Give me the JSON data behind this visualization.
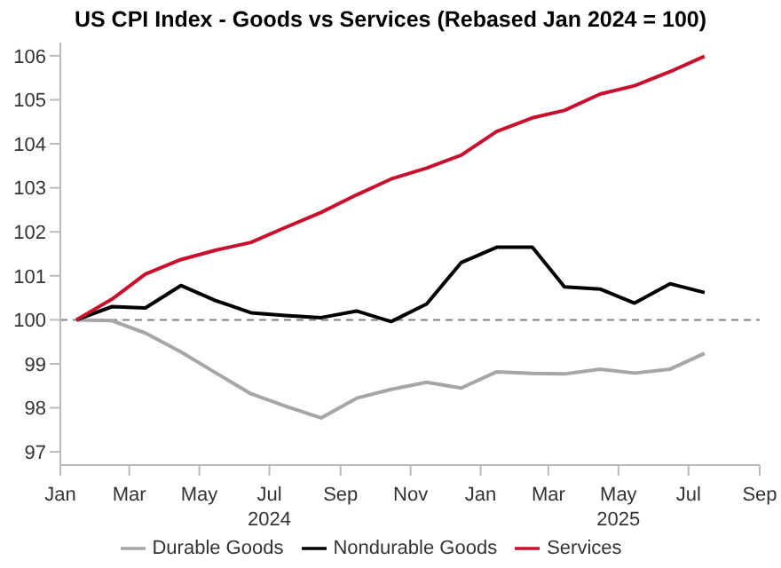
{
  "chart_data": {
    "type": "line",
    "title": "US CPI Index - Goods vs Services (Rebased Jan 2024 = 100)",
    "x": [
      "2024-01-15",
      "2024-02-15",
      "2024-03-15",
      "2024-04-15",
      "2024-05-15",
      "2024-06-15",
      "2024-07-15",
      "2024-08-15",
      "2024-09-15",
      "2024-10-15",
      "2024-11-15",
      "2024-12-15",
      "2025-01-15",
      "2025-02-15",
      "2025-03-15",
      "2025-04-15",
      "2025-05-15",
      "2025-06-15",
      "2025-07-15"
    ],
    "series": [
      {
        "name": "Durable Goods",
        "color": "#a6a6a6",
        "values": [
          100,
          99.98,
          99.7,
          99.27,
          98.8,
          98.32,
          98.04,
          97.77,
          98.22,
          98.42,
          98.58,
          98.45,
          98.82,
          98.78,
          98.77,
          98.88,
          98.79,
          98.88,
          99.24
        ]
      },
      {
        "name": "Nondurable Goods",
        "color": "#000000",
        "values": [
          100,
          100.3,
          100.27,
          100.78,
          100.44,
          100.16,
          100.1,
          100.05,
          100.2,
          99.96,
          100.36,
          101.3,
          101.65,
          101.65,
          100.75,
          100.7,
          100.38,
          100.82,
          100.62
        ]
      },
      {
        "name": "Services",
        "color": "#c8102e",
        "values": [
          100,
          100.47,
          101.04,
          101.37,
          101.58,
          101.76,
          102.1,
          102.44,
          102.84,
          103.2,
          103.45,
          103.74,
          104.28,
          104.59,
          104.76,
          105.13,
          105.32,
          105.64,
          105.99
        ]
      }
    ],
    "xlim": [
      "2024-01-01",
      "2025-09-01"
    ],
    "xticks": [
      {
        "value": "2024-01-01",
        "label": "Jan"
      },
      {
        "value": "2024-03-01",
        "label": "Mar"
      },
      {
        "value": "2024-05-01",
        "label": "May"
      },
      {
        "value": "2024-07-01",
        "label": "Jul\n2024"
      },
      {
        "value": "2024-09-01",
        "label": "Sep"
      },
      {
        "value": "2024-11-01",
        "label": "Nov"
      },
      {
        "value": "2025-01-01",
        "label": "Jan"
      },
      {
        "value": "2025-03-01",
        "label": "Mar"
      },
      {
        "value": "2025-05-01",
        "label": "May\n2025"
      },
      {
        "value": "2025-07-01",
        "label": "Jul"
      },
      {
        "value": "2025-09-01",
        "label": "Sep"
      }
    ],
    "ylim": [
      96.7,
      106.3
    ],
    "yticks": [
      97,
      98,
      99,
      100,
      101,
      102,
      103,
      104,
      105,
      106
    ],
    "ref_lines": [
      {
        "axis": "y",
        "value": 100,
        "color": "#808080",
        "line_style": "dashed"
      }
    ],
    "grid": false,
    "legend": "bottom",
    "marker": "none",
    "line_style": "solid"
  }
}
